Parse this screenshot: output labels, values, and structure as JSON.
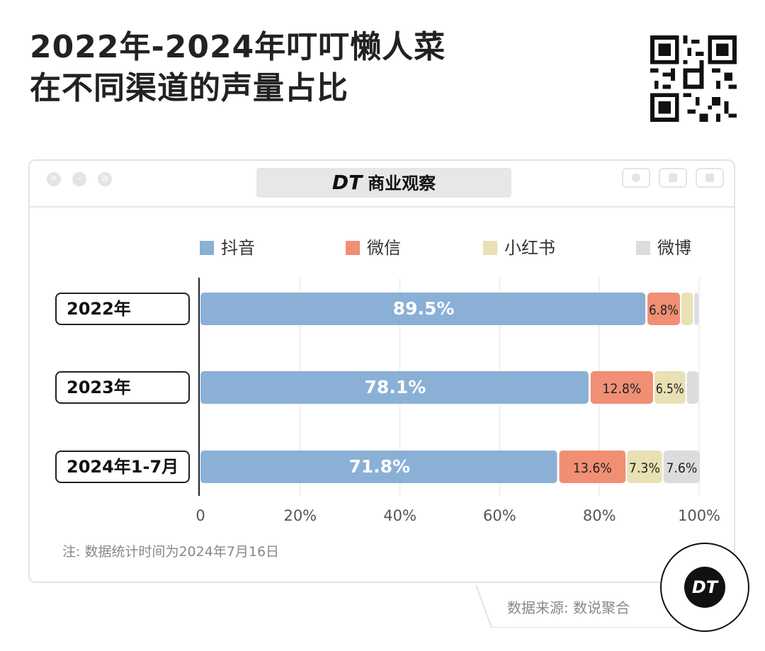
{
  "title": {
    "line1": "2022年-2024年叮叮懒人菜",
    "line2": "在不同渠道的声量占比"
  },
  "brand": {
    "mark": "DT",
    "name": "商业观察"
  },
  "icons": {
    "qr": "qr-code-icon",
    "badge": "dt-logo-icon"
  },
  "chart_data": {
    "type": "bar",
    "orientation": "horizontal",
    "stacked": true,
    "categories": [
      "2022年",
      "2023年",
      "2024年1-7月"
    ],
    "series": [
      {
        "name": "抖音",
        "color": "#8ab0d6",
        "values": [
          89.5,
          78.1,
          71.8
        ]
      },
      {
        "name": "微信",
        "color": "#f08f74",
        "values": [
          6.8,
          12.8,
          13.6
        ]
      },
      {
        "name": "小红书",
        "color": "#e9e0b4",
        "values": [
          2.6,
          6.5,
          7.3
        ]
      },
      {
        "name": "微博",
        "color": "#dcdcdc",
        "values": [
          1.1,
          2.6,
          7.6
        ]
      }
    ],
    "data_labels": [
      [
        "89.5%",
        "6.8%",
        "",
        ""
      ],
      [
        "78.1%",
        "12.8%",
        "6.5%",
        ""
      ],
      [
        "71.8%",
        "13.6%",
        "7.3%",
        "7.6%"
      ]
    ],
    "xticks": [
      "0",
      "20%",
      "40%",
      "60%",
      "80%",
      "100%"
    ],
    "xlim": [
      0,
      100
    ],
    "legend_position": "top",
    "grid": true
  },
  "note": "注: 数据统计时间为2024年7月16日",
  "source": "数据来源: 数说聚合"
}
